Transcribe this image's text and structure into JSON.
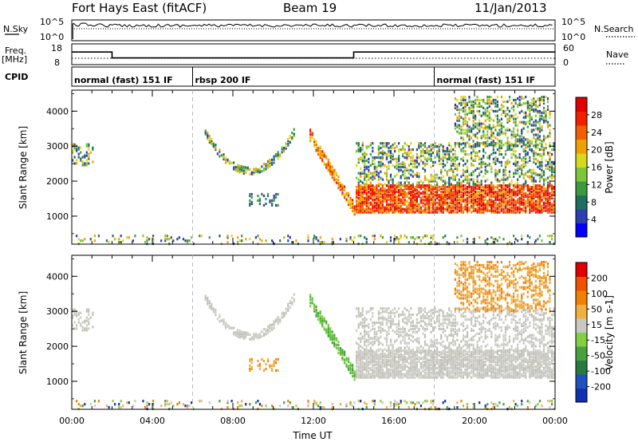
{
  "header": {
    "station": "Fort Hays East (fitACF)",
    "beam": "Beam 19",
    "date": "11/Jan/2013"
  },
  "sky_panel": {
    "left_label": "N.Sky",
    "right_label": "N.Search",
    "tick_top": "10^5",
    "tick_bottom": "10^0"
  },
  "freq_panel": {
    "left_label_1": "Freq.",
    "left_label_2": "[MHz]",
    "right_label": "Nave",
    "left_ticks": [
      "18",
      "8"
    ],
    "right_ticks": [
      "60",
      "0"
    ]
  },
  "cpid_panel": {
    "label": "CPID",
    "segments": [
      {
        "label": "normal (fast) 151 IF",
        "start_hour": 0
      },
      {
        "label": "rbsp 200 IF",
        "start_hour": 6
      },
      {
        "label": "normal (fast) 151 IF",
        "start_hour": 18
      }
    ]
  },
  "chart_data": [
    {
      "type": "heatmap",
      "name": "power",
      "ylabel": "Slant Range [km]",
      "ylim": [
        200,
        4600
      ],
      "y_ticks": [
        1000,
        2000,
        3000,
        4000
      ],
      "xlim": [
        0,
        24
      ],
      "colorbar": {
        "label": "Power [dB]",
        "ticks": [
          "4",
          "8",
          "12",
          "16",
          "20",
          "24",
          "28"
        ],
        "colors": [
          "#0000ff",
          "#2b3fb0",
          "#1e6f5e",
          "#3c9a3c",
          "#7cc63a",
          "#d8d820",
          "#f0a000",
          "#f06000",
          "#f02000",
          "#e00000"
        ]
      }
    },
    {
      "type": "heatmap",
      "name": "velocity",
      "ylabel": "Slant Range [km]",
      "ylim": [
        200,
        4600
      ],
      "y_ticks": [
        1000,
        2000,
        3000,
        4000
      ],
      "xlim": [
        0,
        24
      ],
      "colorbar": {
        "label": "Velocity [m s-1]",
        "ticks": [
          "200",
          "100",
          "50",
          "15",
          "-15",
          "-50",
          "-100",
          "-200"
        ],
        "colors": [
          "#1030b0",
          "#2050c0",
          "#2a7a40",
          "#4aa040",
          "#80d040",
          "#c8c8c0",
          "#f0b040",
          "#f08000",
          "#f05000",
          "#e00000"
        ]
      }
    }
  ],
  "x_axis": {
    "label": "Time UT",
    "ticks": [
      "00:00",
      "04:00",
      "08:00",
      "12:00",
      "16:00",
      "20:00",
      "00:00"
    ]
  },
  "freq_levels": [
    {
      "from": 0,
      "to": 2.0,
      "mhz": 14.5
    },
    {
      "from": 2.0,
      "to": 14.0,
      "mhz": 10.5
    },
    {
      "from": 14.0,
      "to": 24,
      "mhz": 14.5
    }
  ],
  "scatter_features": [
    {
      "name": "early-band",
      "t0": 0.0,
      "t1": 1.0,
      "r0": 2450,
      "r1": 3050,
      "power": "mixed",
      "velocity": "grey"
    },
    {
      "name": "arc-1",
      "t0": 6.6,
      "t1": 11.0,
      "rmin": 2300,
      "rmax": 3400,
      "power": "mixed",
      "velocity": "grey"
    },
    {
      "name": "small-patch",
      "t0": 8.8,
      "t1": 10.2,
      "r0": 1300,
      "r1": 1650,
      "power": "green",
      "velocity": "orange"
    },
    {
      "name": "descending-band",
      "t0": 11.8,
      "t1": 14.0,
      "r0": 3300,
      "r1": 1200,
      "power": "orange",
      "velocity": "green"
    },
    {
      "name": "main-block",
      "t0": 14.1,
      "t1": 24.0,
      "r0": 1100,
      "r1": 1900,
      "power": "red",
      "velocity": "grey"
    },
    {
      "name": "upper-bands",
      "t0": 14.1,
      "t1": 24.0,
      "r0": 1900,
      "r1": 3100,
      "power": "mixed",
      "velocity": "grey"
    },
    {
      "name": "late-upper",
      "t0": 19.0,
      "t1": 23.8,
      "r0": 3000,
      "r1": 4400,
      "power": "mixed",
      "velocity": "orange"
    },
    {
      "name": "ground-band",
      "t0": 0.0,
      "t1": 24.0,
      "r0": 200,
      "r1": 450,
      "power": "mixed",
      "velocity": "mixed"
    }
  ]
}
